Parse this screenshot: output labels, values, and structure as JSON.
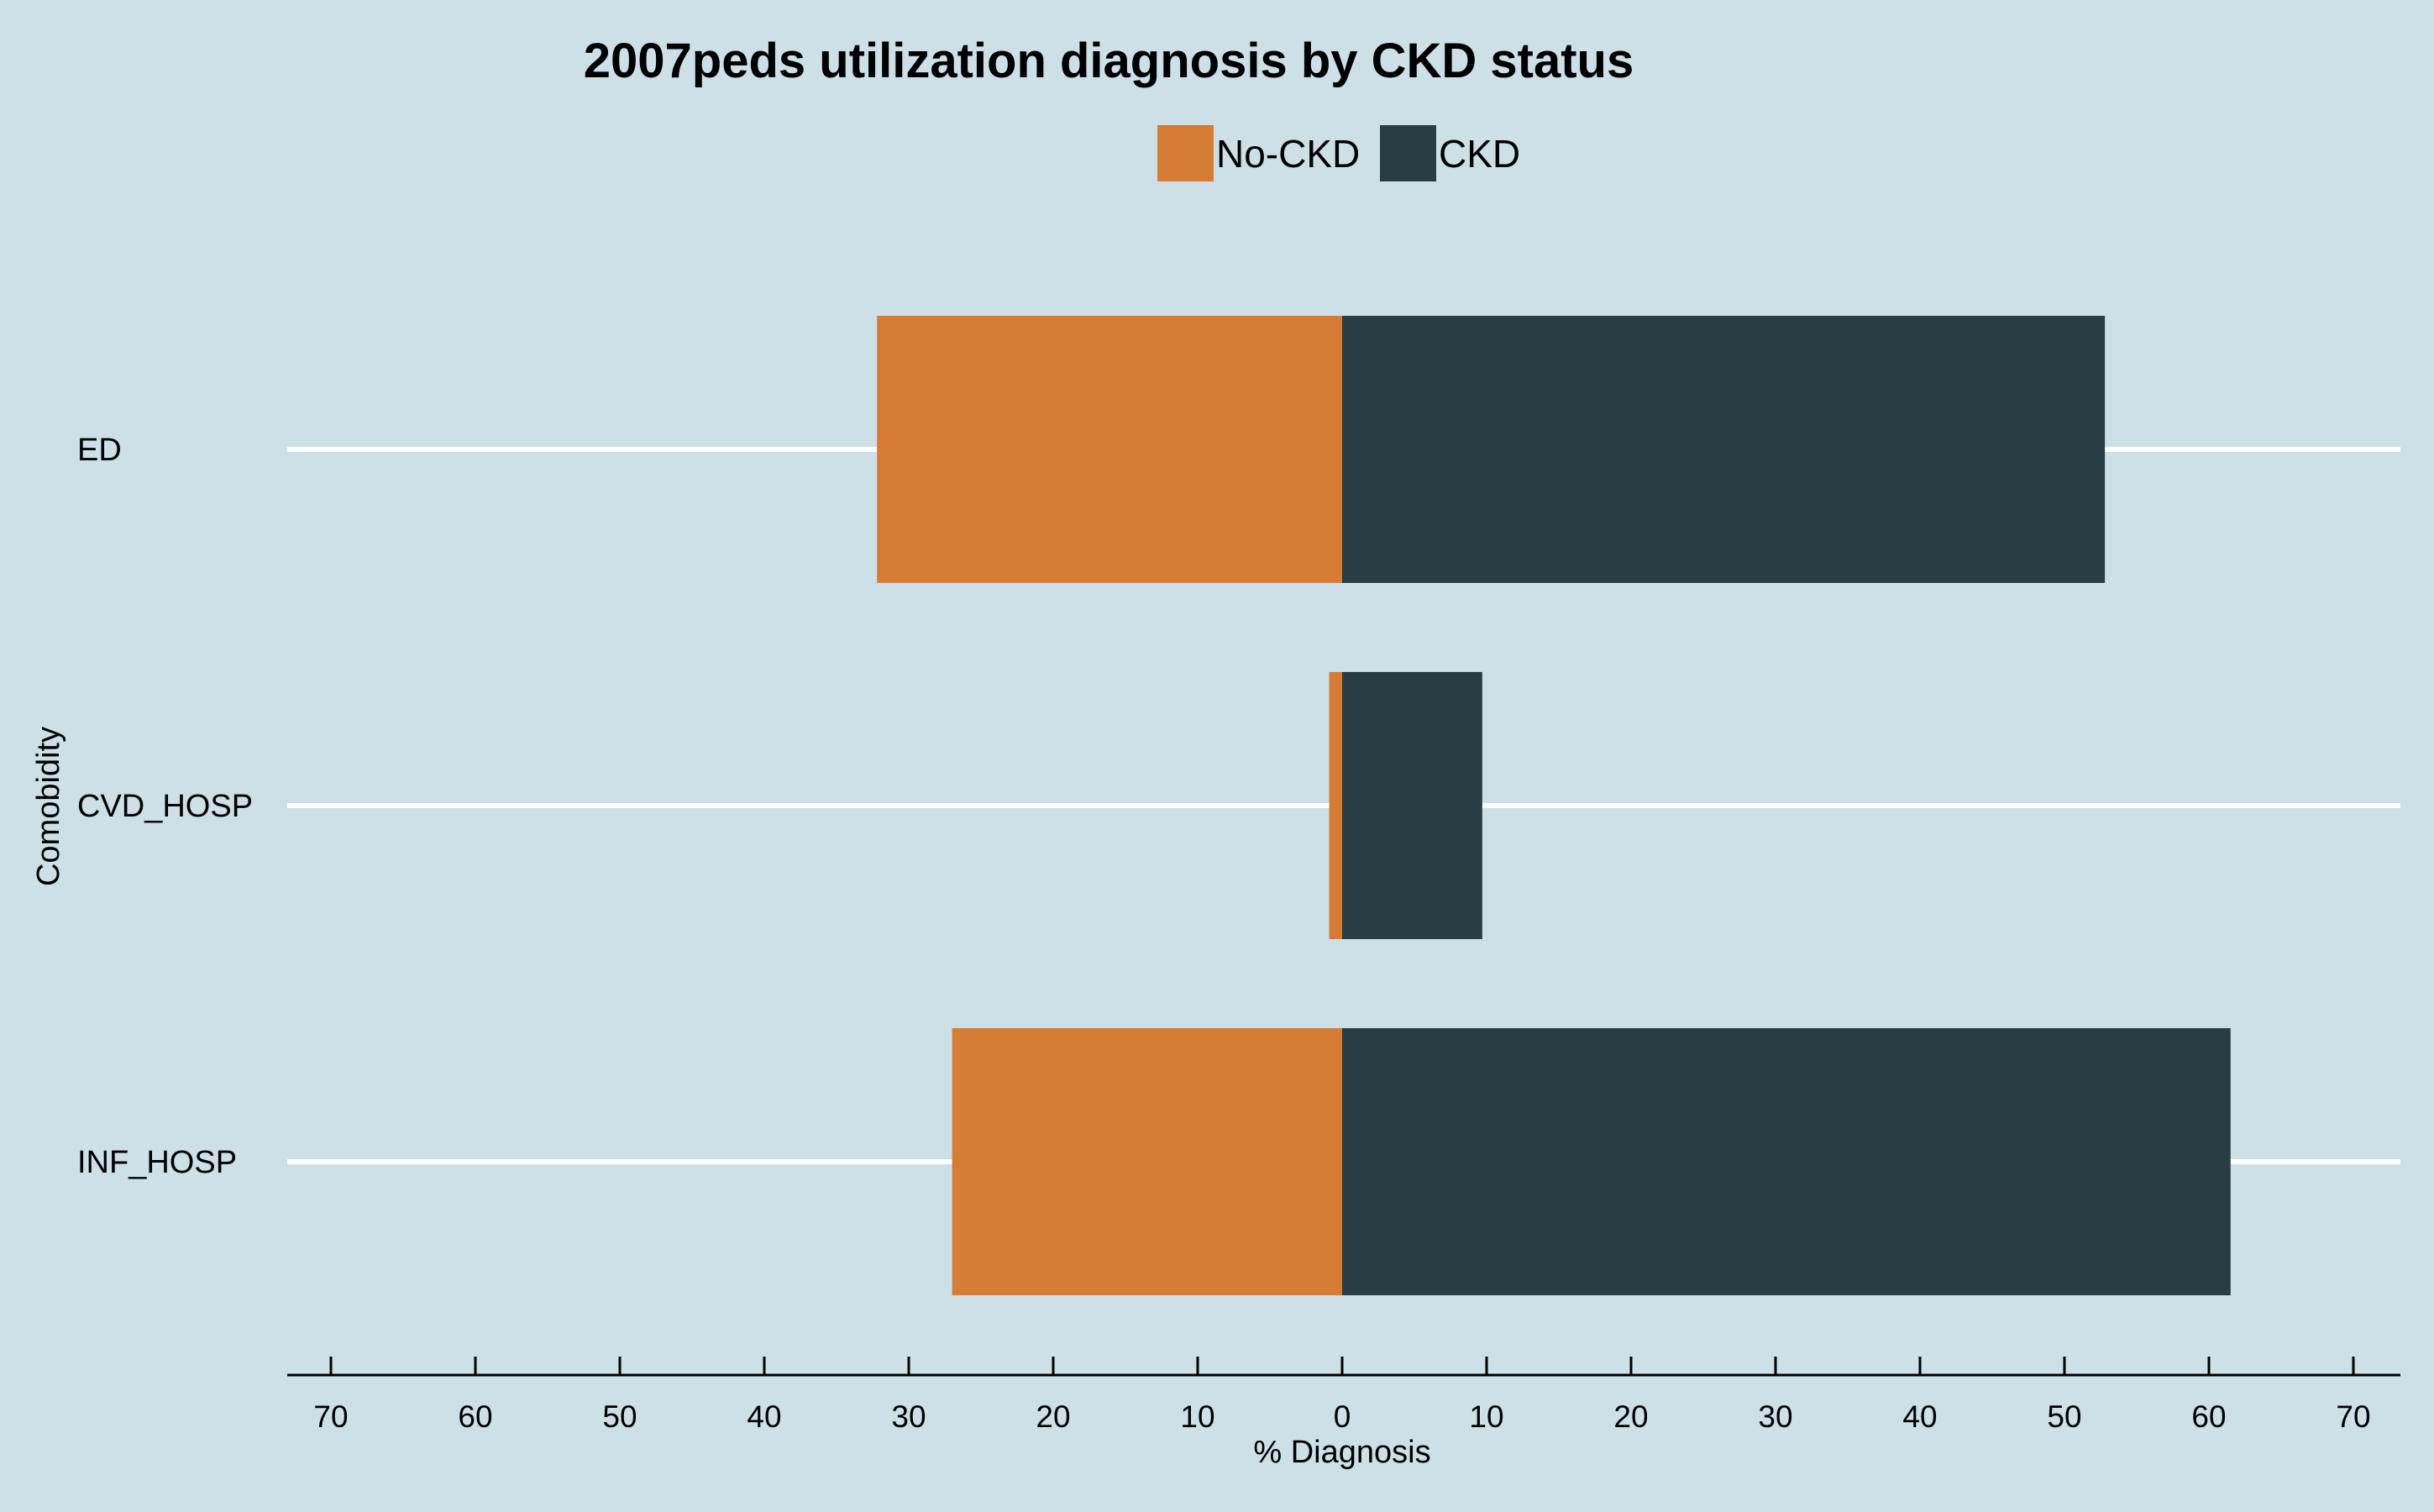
{
  "colors": {
    "background": "#cde0e7",
    "no_ckd": "#d67c35",
    "ckd": "#293d45",
    "gridline": "#ffffff",
    "axis": "#000000"
  },
  "chart_data": {
    "type": "bar",
    "orientation": "horizontal-diverging",
    "title": "2007peds utilization diagnosis by CKD status",
    "xlabel": "% Diagnosis",
    "ylabel": "Comobidity",
    "categories": [
      "ED",
      "CVD_HOSP",
      "INF_HOSP"
    ],
    "series": [
      {
        "name": "No-CKD",
        "side": "left",
        "values": [
          32.2,
          0.9,
          27.0
        ]
      },
      {
        "name": "CKD",
        "side": "right",
        "values": [
          52.8,
          9.7,
          61.5
        ]
      }
    ],
    "xlim": [
      -70,
      70
    ],
    "xticks": [
      -70,
      -60,
      -50,
      -40,
      -30,
      -20,
      -10,
      0,
      10,
      20,
      30,
      40,
      50,
      60,
      70
    ],
    "xtick_labels": [
      "70",
      "60",
      "50",
      "40",
      "30",
      "20",
      "10",
      "0",
      "10",
      "20",
      "30",
      "40",
      "50",
      "60",
      "70"
    ],
    "legend_position": "top-center",
    "grid": "horizontal lines at categories"
  }
}
